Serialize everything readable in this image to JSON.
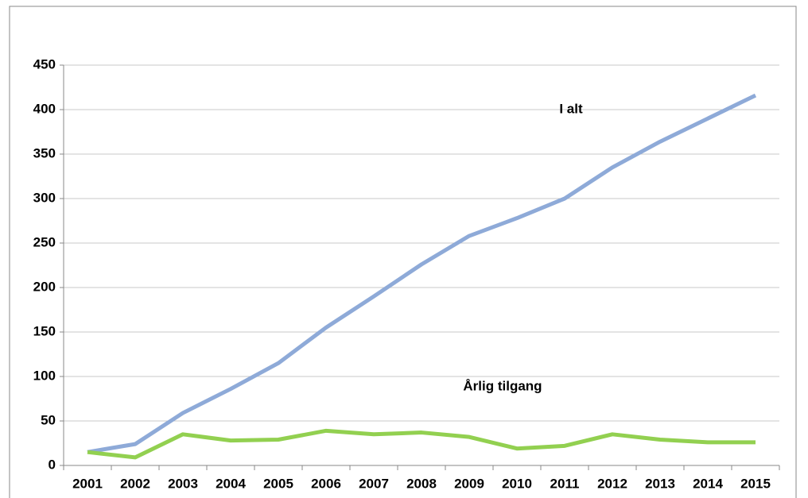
{
  "chart_data": {
    "type": "line",
    "categories": [
      "2001",
      "2002",
      "2003",
      "2004",
      "2005",
      "2006",
      "2007",
      "2008",
      "2009",
      "2010",
      "2011",
      "2012",
      "2013",
      "2014",
      "2015"
    ],
    "series": [
      {
        "name": "I alt",
        "color": "#8eaad8",
        "values": [
          15,
          24,
          59,
          86,
          115,
          155,
          190,
          226,
          258,
          278,
          300,
          335,
          364,
          390,
          416
        ]
      },
      {
        "name": "Årlig tilgang",
        "color": "#92d050",
        "values": [
          15,
          9,
          35,
          28,
          29,
          39,
          35,
          37,
          32,
          19,
          22,
          35,
          29,
          26,
          26
        ]
      }
    ],
    "ylim": [
      0,
      450
    ],
    "yticks": [
      0,
      50,
      100,
      150,
      200,
      250,
      300,
      350,
      400,
      450
    ],
    "grid": true
  }
}
